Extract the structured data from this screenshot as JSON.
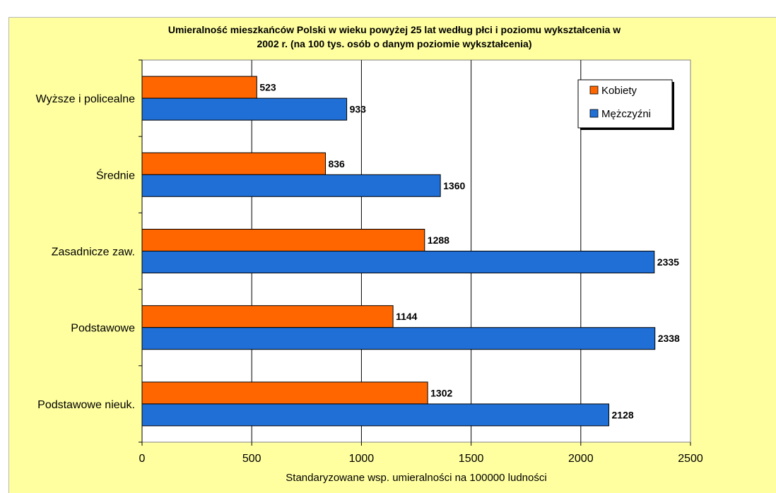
{
  "chart_data": {
    "type": "bar",
    "orientation": "horizontal",
    "title_lines": [
      "Umieralność mieszkańców Polski w wieku powyżej 25 lat według płci i poziomu wykształcenia w",
      "2002 r. (na 100 tys. osób o danym poziomie wykształcenia)"
    ],
    "xlabel": "Standaryzowane wsp. umieralności na 100000 ludności",
    "xlim": [
      0,
      2500
    ],
    "xticks": [
      "0",
      "500",
      "1000",
      "1500",
      "2000",
      "2500"
    ],
    "xtick_values": [
      0,
      500,
      1000,
      1500,
      2000,
      2500
    ],
    "categories": [
      "Wyższe i policealne",
      "Średnie",
      "Zasadnicze zaw.",
      "Podstawowe",
      "Podstawowe nieuk."
    ],
    "series": [
      {
        "name": "Kobiety",
        "color": "#ff6600",
        "values": [
          523,
          836,
          1288,
          1144,
          1302
        ]
      },
      {
        "name": "Mężczyźni",
        "color": "#1f6fd6",
        "values": [
          933,
          1360,
          2335,
          2338,
          2128
        ]
      }
    ],
    "grid": true,
    "legend_position": "top-right",
    "plot_background": "#ffffff",
    "chart_background": "#ffffa0"
  }
}
